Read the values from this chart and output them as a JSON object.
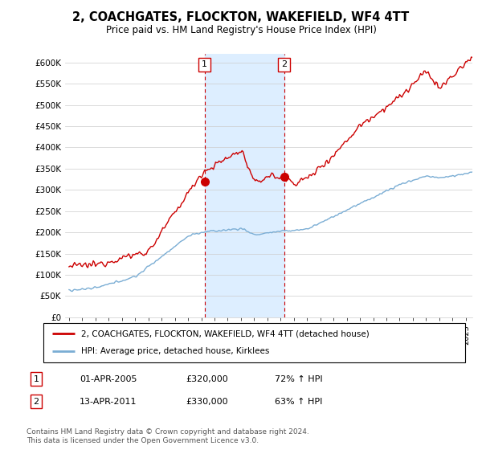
{
  "title": "2, COACHGATES, FLOCKTON, WAKEFIELD, WF4 4TT",
  "subtitle": "Price paid vs. HM Land Registry's House Price Index (HPI)",
  "ylim": [
    0,
    620000
  ],
  "yticks": [
    0,
    50000,
    100000,
    150000,
    200000,
    250000,
    300000,
    350000,
    400000,
    450000,
    500000,
    550000,
    600000
  ],
  "ytick_labels": [
    "£0",
    "£50K",
    "£100K",
    "£150K",
    "£200K",
    "£250K",
    "£300K",
    "£350K",
    "£400K",
    "£450K",
    "£500K",
    "£550K",
    "£600K"
  ],
  "sale1_date": 2005.25,
  "sale1_price": 320000,
  "sale1_label": "1",
  "sale2_date": 2011.28,
  "sale2_price": 330000,
  "sale2_label": "2",
  "red_color": "#cc0000",
  "blue_color": "#7aadd4",
  "highlight_color": "#ddeeff",
  "legend_line1": "2, COACHGATES, FLOCKTON, WAKEFIELD, WF4 4TT (detached house)",
  "legend_line2": "HPI: Average price, detached house, Kirklees",
  "footnote": "Contains HM Land Registry data © Crown copyright and database right 2024.\nThis data is licensed under the Open Government Licence v3.0.",
  "table_row1": [
    "1",
    "01-APR-2005",
    "£320,000",
    "72% ↑ HPI"
  ],
  "table_row2": [
    "2",
    "13-APR-2011",
    "£330,000",
    "63% ↑ HPI"
  ],
  "xlim_left": 1994.7,
  "xlim_right": 2025.5
}
